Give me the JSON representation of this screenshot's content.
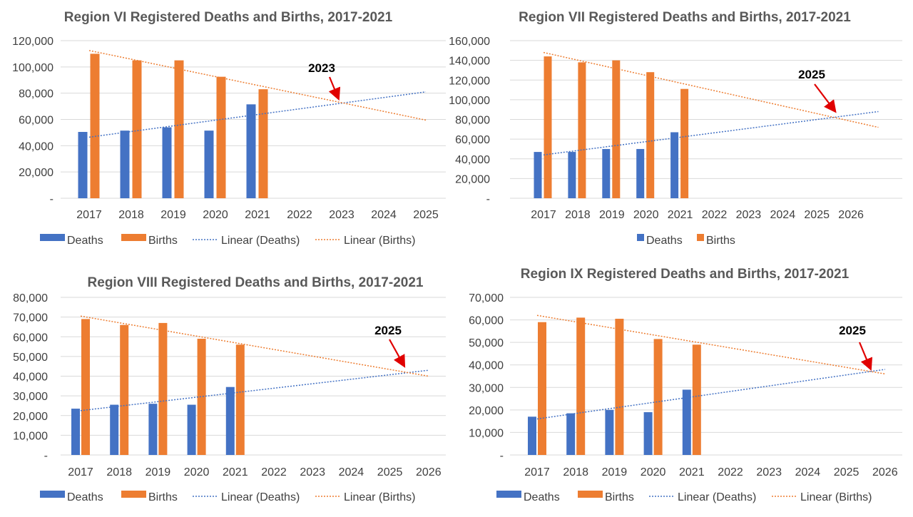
{
  "colors": {
    "deaths": "#4472C4",
    "births": "#ED7D31",
    "grid": "#D9D9D9",
    "arrow": "#E00000"
  },
  "chart_data": [
    {
      "type": "bar",
      "title": "Region VI Registered Deaths and Births, 2017-2021",
      "categories": [
        "2017",
        "2018",
        "2019",
        "2020",
        "2021",
        "2022",
        "2023",
        "2024",
        "2025"
      ],
      "ylim": [
        0,
        120000
      ],
      "yticks": [
        "-",
        "20,000",
        "40,000",
        "60,000",
        "80,000",
        "100,000",
        "120,000"
      ],
      "ytick_values": [
        0,
        20000,
        40000,
        60000,
        80000,
        100000,
        120000
      ],
      "series": [
        {
          "name": "Deaths",
          "values": [
            50500,
            51500,
            54000,
            51500,
            71500,
            null,
            null,
            null,
            null
          ]
        },
        {
          "name": "Births",
          "values": [
            110000,
            105000,
            105000,
            92500,
            83000,
            null,
            null,
            null,
            null
          ]
        }
      ],
      "trendlines": [
        {
          "name": "Linear (Deaths)",
          "x": [
            2017,
            2025
          ],
          "y": [
            46500,
            81000
          ]
        },
        {
          "name": "Linear (Births)",
          "x": [
            2017,
            2025
          ],
          "y": [
            112500,
            59500
          ]
        }
      ],
      "annotation": {
        "text": "2023",
        "x": 2023,
        "y": 72000
      },
      "legend": [
        "Deaths",
        "Births",
        "Linear (Deaths)",
        "Linear (Births)"
      ],
      "legend_position": "bottom",
      "grid": true
    },
    {
      "type": "bar",
      "title": "Region VII Registered Deaths and Births, 2017-2021",
      "categories": [
        "2017",
        "2018",
        "2019",
        "2020",
        "2021",
        "2022",
        "2023",
        "2024",
        "2025",
        "2026"
      ],
      "ylim": [
        0,
        160000
      ],
      "yticks": [
        "-",
        "20,000",
        "40,000",
        "60,000",
        "80,000",
        "100,000",
        "120,000",
        "140,000",
        "160,000"
      ],
      "ytick_values": [
        0,
        20000,
        40000,
        60000,
        80000,
        100000,
        120000,
        140000,
        160000
      ],
      "series": [
        {
          "name": "Deaths",
          "values": [
            47000,
            47000,
            50000,
            50000,
            67000,
            null,
            null,
            null,
            null,
            null
          ]
        },
        {
          "name": "Births",
          "values": [
            144000,
            138000,
            140000,
            128000,
            111000,
            null,
            null,
            null,
            null,
            null
          ]
        }
      ],
      "trendlines": [
        {
          "name": "Linear (Deaths)",
          "x": [
            2017,
            2026.8
          ],
          "y": [
            44000,
            88000
          ]
        },
        {
          "name": "Linear (Births)",
          "x": [
            2017,
            2026.8
          ],
          "y": [
            148000,
            72000
          ]
        }
      ],
      "annotation": {
        "text": "2025",
        "x": 2025.6,
        "y": 82000
      },
      "legend": [
        "Deaths",
        "Births"
      ],
      "legend_position": "bottom",
      "grid": true
    },
    {
      "type": "bar",
      "title": "Region VIII Registered Deaths and Births, 2017-2021",
      "categories": [
        "2017",
        "2018",
        "2019",
        "2020",
        "2021",
        "2022",
        "2023",
        "2024",
        "2025",
        "2026"
      ],
      "ylim": [
        0,
        80000
      ],
      "yticks": [
        "-",
        "10,000",
        "20,000",
        "30,000",
        "40,000",
        "50,000",
        "60,000",
        "70,000",
        "80,000"
      ],
      "ytick_values": [
        0,
        10000,
        20000,
        30000,
        40000,
        50000,
        60000,
        70000,
        80000
      ],
      "series": [
        {
          "name": "Deaths",
          "values": [
            23500,
            25500,
            26000,
            25500,
            34500,
            null,
            null,
            null,
            null,
            null
          ]
        },
        {
          "name": "Births",
          "values": [
            69000,
            66000,
            67000,
            59000,
            56000,
            null,
            null,
            null,
            null,
            null
          ]
        }
      ],
      "trendlines": [
        {
          "name": "Linear (Deaths)",
          "x": [
            2017,
            2026
          ],
          "y": [
            22500,
            43000
          ]
        },
        {
          "name": "Linear (Births)",
          "x": [
            2017,
            2026
          ],
          "y": [
            70500,
            40000
          ]
        }
      ],
      "annotation": {
        "text": "2025",
        "x": 2025.5,
        "y": 41500
      },
      "legend": [
        "Deaths",
        "Births",
        "Linear (Deaths)",
        "Linear (Births)"
      ],
      "legend_position": "bottom",
      "grid": true
    },
    {
      "type": "bar",
      "title": "Region IX Registered Deaths and Births, 2017-2021",
      "categories": [
        "2017",
        "2018",
        "2019",
        "2020",
        "2021",
        "2022",
        "2023",
        "2024",
        "2025",
        "2026"
      ],
      "ylim": [
        0,
        70000
      ],
      "yticks": [
        "-",
        "10,000",
        "20,000",
        "30,000",
        "40,000",
        "50,000",
        "60,000",
        "70,000"
      ],
      "ytick_values": [
        0,
        10000,
        20000,
        30000,
        40000,
        50000,
        60000,
        70000
      ],
      "series": [
        {
          "name": "Deaths",
          "values": [
            17000,
            18500,
            20000,
            19000,
            29000,
            null,
            null,
            null,
            null,
            null
          ]
        },
        {
          "name": "Births",
          "values": [
            59000,
            61000,
            60500,
            51500,
            49000,
            null,
            null,
            null,
            null,
            null
          ]
        }
      ],
      "trendlines": [
        {
          "name": "Linear (Deaths)",
          "x": [
            2017,
            2026
          ],
          "y": [
            16000,
            38000
          ]
        },
        {
          "name": "Linear (Births)",
          "x": [
            2017,
            2026
          ],
          "y": [
            62000,
            36000
          ]
        }
      ],
      "annotation": {
        "text": "2025",
        "x": 2025.7,
        "y": 37000
      },
      "legend": [
        "Deaths",
        "Births",
        "Linear (Deaths)",
        "Linear (Births)"
      ],
      "legend_position": "bottom",
      "grid": true
    }
  ]
}
